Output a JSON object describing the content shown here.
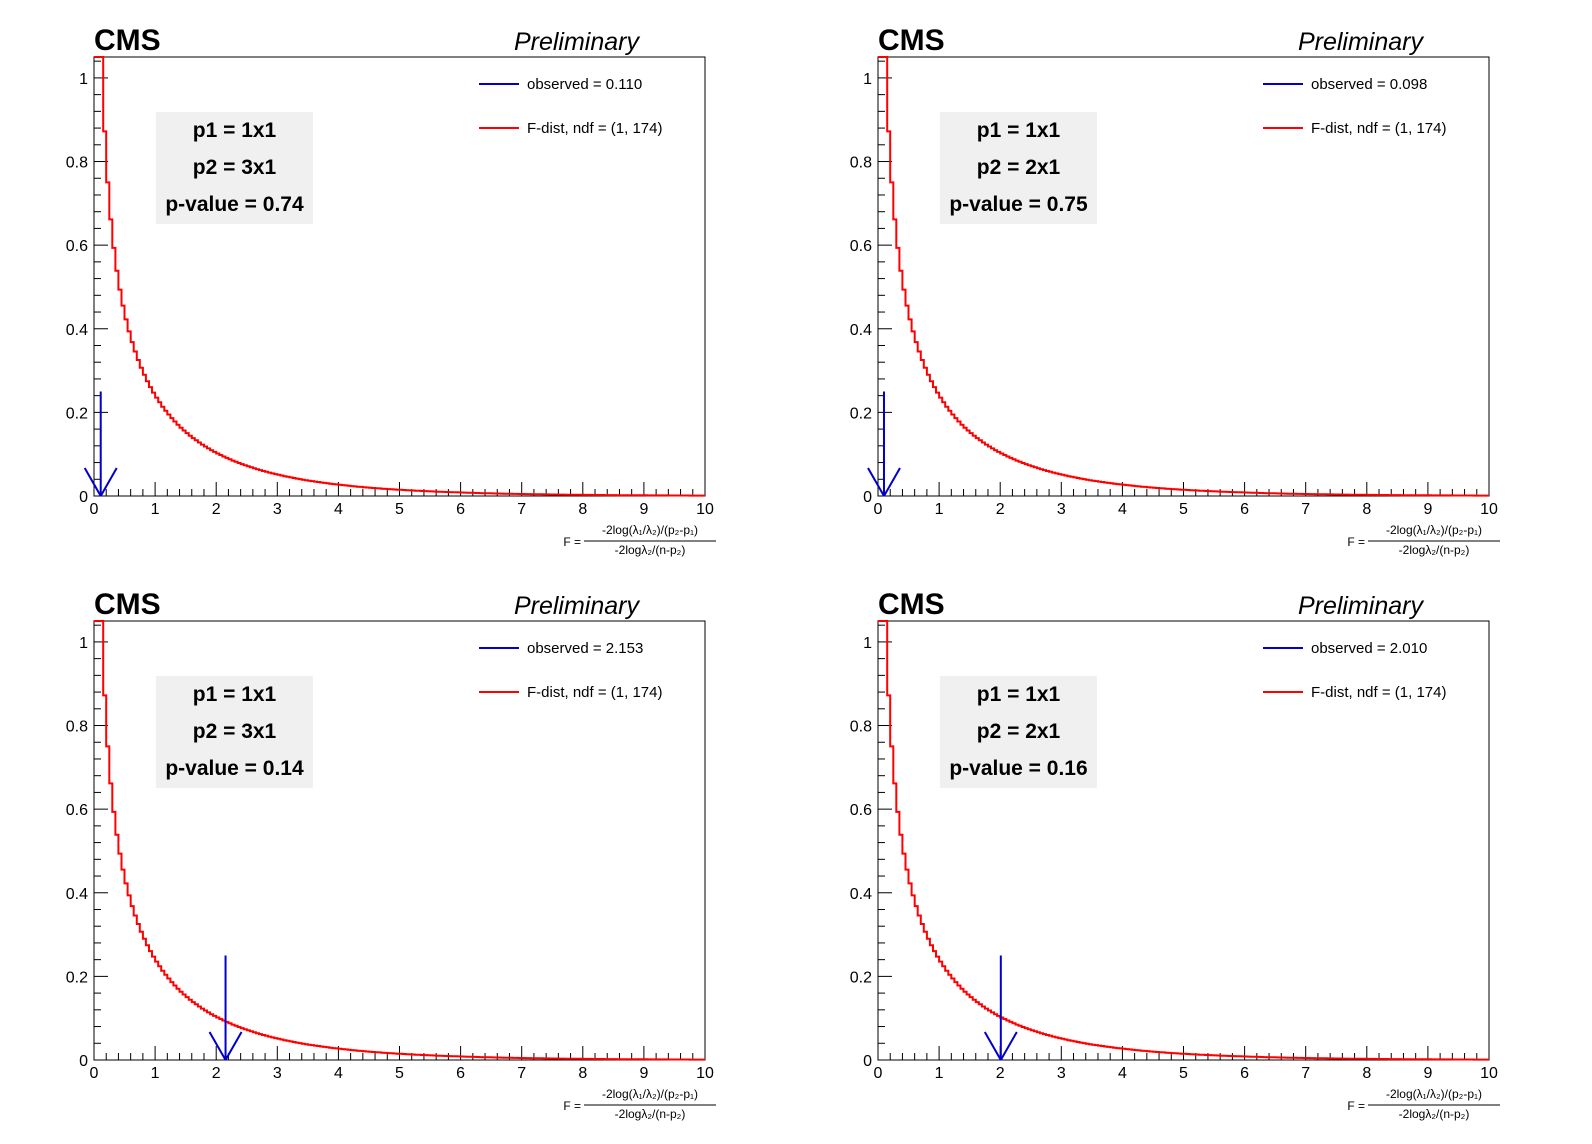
{
  "palette": {
    "observed": "#0000cc",
    "fdist": "#ff0000",
    "axis": "#000000",
    "box": "#f0f0f0"
  },
  "x_axis_title": {
    "prefix": "F =",
    "numerator": "-2log(λ₁/λ₂)/(p₂-p₁)",
    "denominator": "-2logλ₂/(n-p₂)"
  },
  "chart_data": [
    {
      "type": "line",
      "experiment": "CMS",
      "status": "Preliminary",
      "xlim": [
        0,
        10
      ],
      "ylim": [
        0,
        1.05
      ],
      "x_ticks": [
        "0",
        "1",
        "2",
        "3",
        "4",
        "5",
        "6",
        "7",
        "8",
        "9",
        "10"
      ],
      "y_ticks": [
        "0",
        "0.2",
        "0.4",
        "0.6",
        "0.8",
        "1"
      ],
      "legend": [
        "observed = 0.110",
        "F-dist, ndf = (1, 174)"
      ],
      "info": [
        "p1 = 1x1",
        "p2 = 3x1",
        "p-value = 0.74"
      ],
      "observed": 0.11,
      "ndf": [
        1,
        174
      ]
    },
    {
      "type": "line",
      "experiment": "CMS",
      "status": "Preliminary",
      "xlim": [
        0,
        10
      ],
      "ylim": [
        0,
        1.05
      ],
      "x_ticks": [
        "0",
        "1",
        "2",
        "3",
        "4",
        "5",
        "6",
        "7",
        "8",
        "9",
        "10"
      ],
      "y_ticks": [
        "0",
        "0.2",
        "0.4",
        "0.6",
        "0.8",
        "1"
      ],
      "legend": [
        "observed = 0.098",
        "F-dist, ndf = (1, 174)"
      ],
      "info": [
        "p1 = 1x1",
        "p2 = 2x1",
        "p-value = 0.75"
      ],
      "observed": 0.098,
      "ndf": [
        1,
        174
      ]
    },
    {
      "type": "line",
      "experiment": "CMS",
      "status": "Preliminary",
      "xlim": [
        0,
        10
      ],
      "ylim": [
        0,
        1.05
      ],
      "x_ticks": [
        "0",
        "1",
        "2",
        "3",
        "4",
        "5",
        "6",
        "7",
        "8",
        "9",
        "10"
      ],
      "y_ticks": [
        "0",
        "0.2",
        "0.4",
        "0.6",
        "0.8",
        "1"
      ],
      "legend": [
        "observed = 2.153",
        "F-dist, ndf = (1, 174)"
      ],
      "info": [
        "p1 = 1x1",
        "p2 = 3x1",
        "p-value = 0.14"
      ],
      "observed": 2.153,
      "ndf": [
        1,
        174
      ]
    },
    {
      "type": "line",
      "experiment": "CMS",
      "status": "Preliminary",
      "xlim": [
        0,
        10
      ],
      "ylim": [
        0,
        1.05
      ],
      "x_ticks": [
        "0",
        "1",
        "2",
        "3",
        "4",
        "5",
        "6",
        "7",
        "8",
        "9",
        "10"
      ],
      "y_ticks": [
        "0",
        "0.2",
        "0.4",
        "0.6",
        "0.8",
        "1"
      ],
      "legend": [
        "observed = 2.010",
        "F-dist, ndf = (1, 174)"
      ],
      "info": [
        "p1 = 1x1",
        "p2 = 2x1",
        "p-value = 0.16"
      ],
      "observed": 2.01,
      "ndf": [
        1,
        174
      ]
    }
  ]
}
